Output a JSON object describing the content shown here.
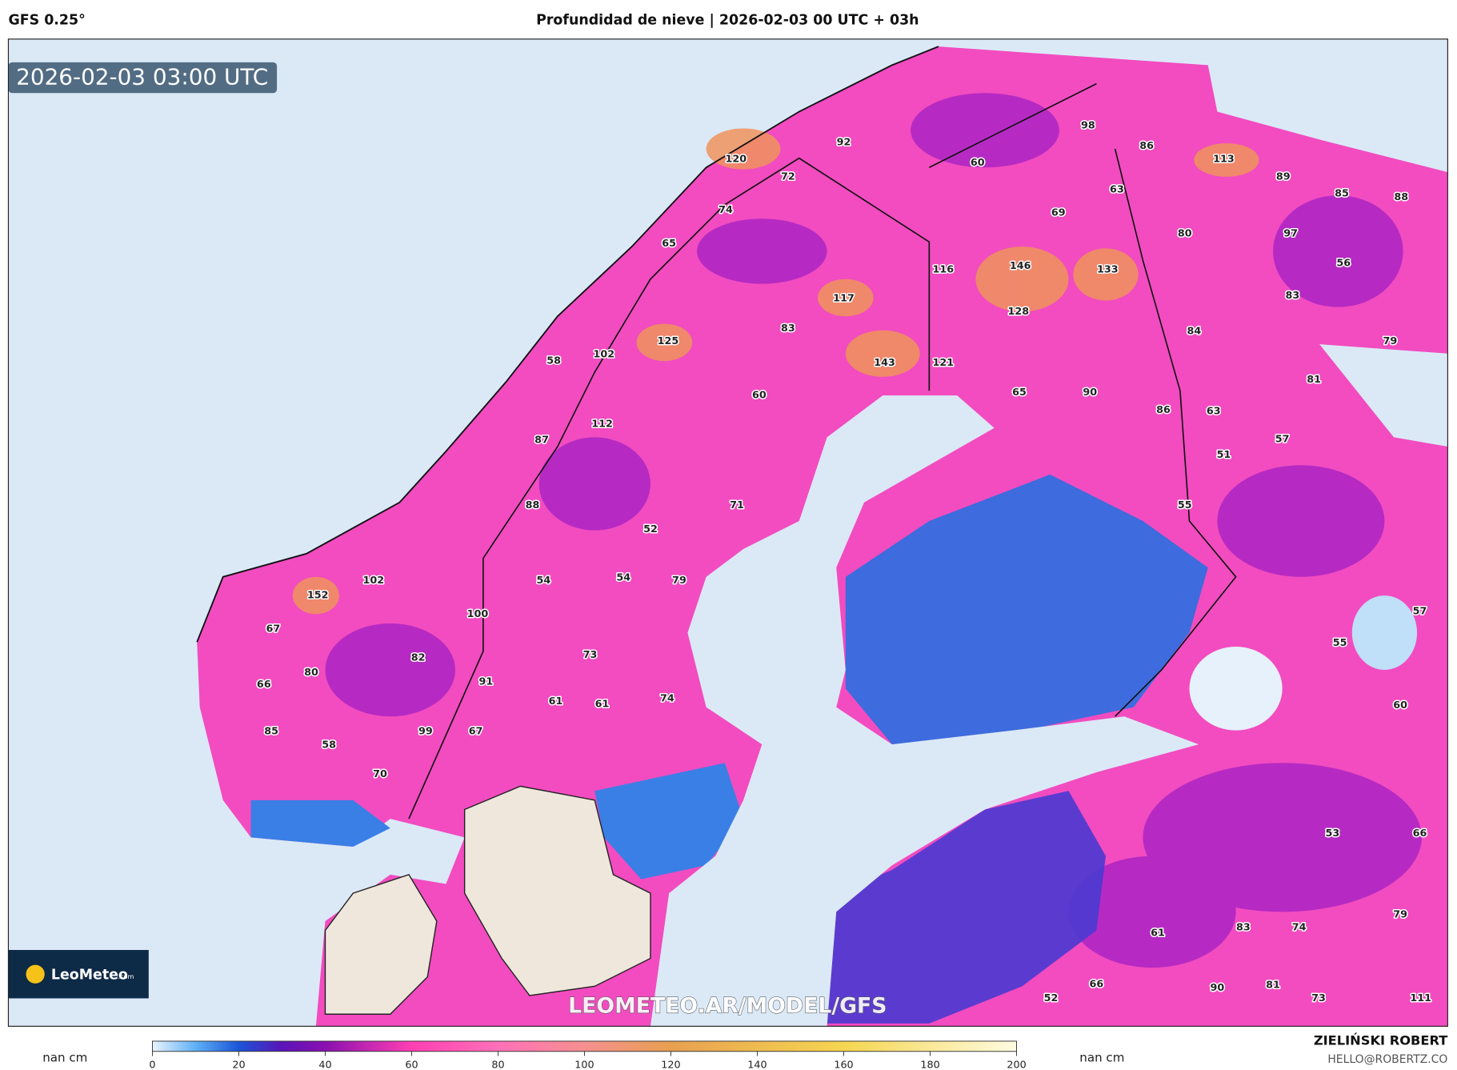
{
  "header": {
    "model": "GFS 0.25°",
    "title": "Profundidad de nieve | 2026-02-03 00 UTC + 03h"
  },
  "map": {
    "timestamp": "2026-02-03 03:00 UTC",
    "watermark": "LEOMETEO.AR/MODEL/GFS",
    "labels": [
      98,
      86,
      92,
      60,
      120,
      72,
      113,
      89,
      85,
      88,
      63,
      69,
      74,
      80,
      97,
      65,
      116,
      146,
      133,
      56,
      117,
      128,
      83,
      83,
      84,
      125,
      102,
      58,
      143,
      121,
      79,
      81,
      60,
      65,
      90,
      86,
      63,
      112,
      87,
      57,
      51,
      88,
      71,
      55,
      52,
      152,
      102,
      54,
      54,
      79,
      100,
      57,
      67,
      55,
      82,
      73,
      80,
      66,
      91,
      74,
      61,
      61,
      60,
      85,
      99,
      67,
      58,
      70,
      53,
      66,
      79,
      83,
      74,
      61,
      66,
      90,
      81,
      52,
      73,
      111
    ]
  },
  "logo": {
    "name": "LeoMeteo",
    "suffix": ".com"
  },
  "colorbar": {
    "range": [
      0,
      200
    ],
    "ticks": [
      0,
      20,
      40,
      60,
      80,
      100,
      120,
      140,
      160,
      180,
      200
    ],
    "left_label": "nan cm",
    "right_label": "nan cm"
  },
  "credits": {
    "author": "ZIELIŃSKI ROBERT",
    "email": "HELLO@ROBERTZ.CO"
  }
}
